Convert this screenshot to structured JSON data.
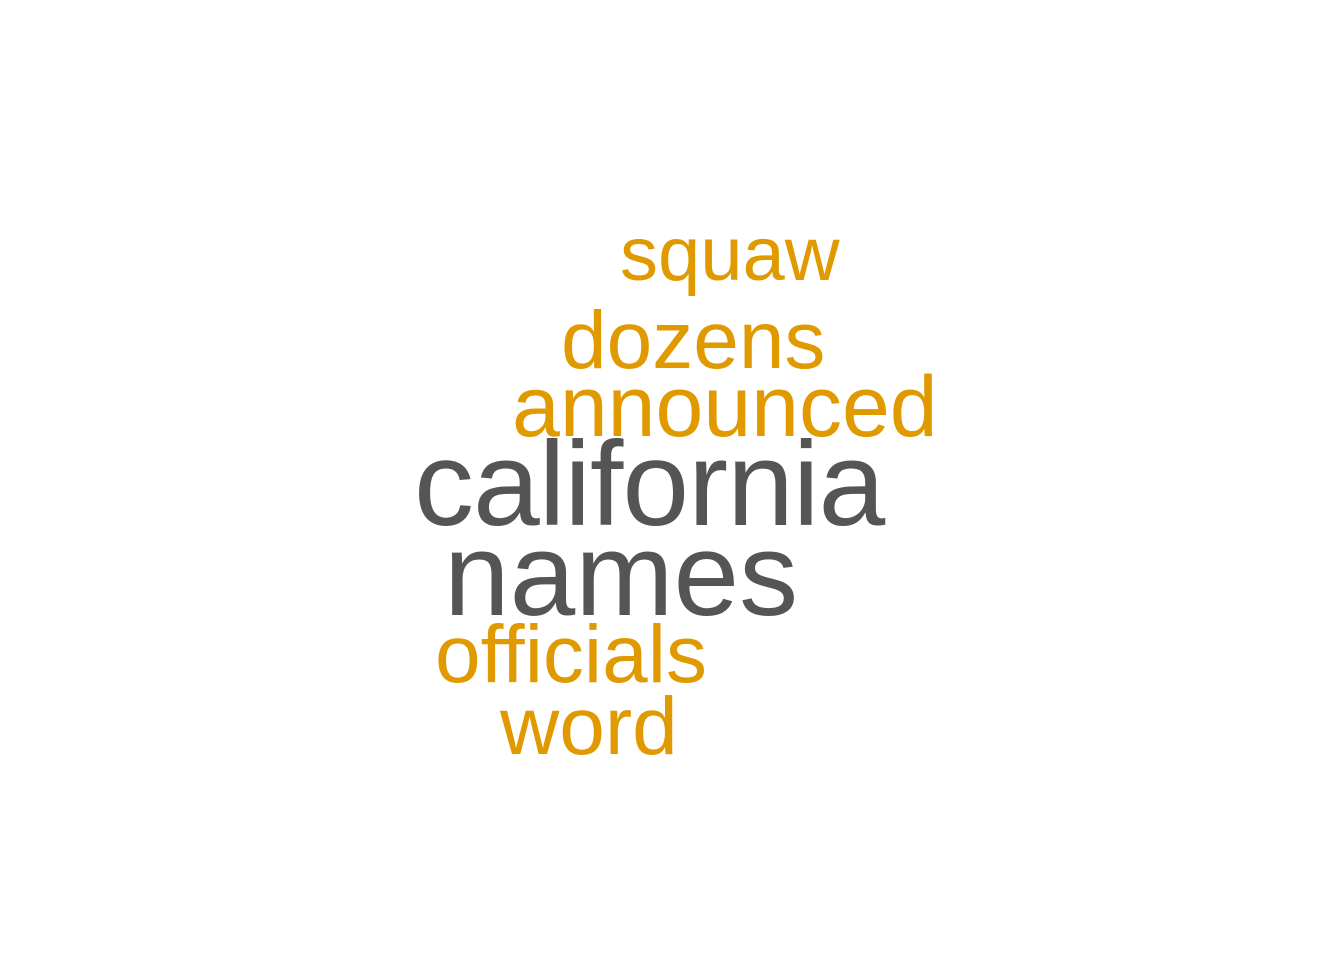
{
  "colors": {
    "background": "#ffffff",
    "primary_term": "#555555",
    "secondary_term": "#E09A00"
  },
  "words": [
    {
      "text": "squaw",
      "group": "secondary_term"
    },
    {
      "text": "dozens",
      "group": "secondary_term"
    },
    {
      "text": "announced",
      "group": "secondary_term"
    },
    {
      "text": "california",
      "group": "primary_term"
    },
    {
      "text": "names",
      "group": "primary_term"
    },
    {
      "text": "officials",
      "group": "secondary_term"
    },
    {
      "text": "word",
      "group": "secondary_term"
    }
  ]
}
